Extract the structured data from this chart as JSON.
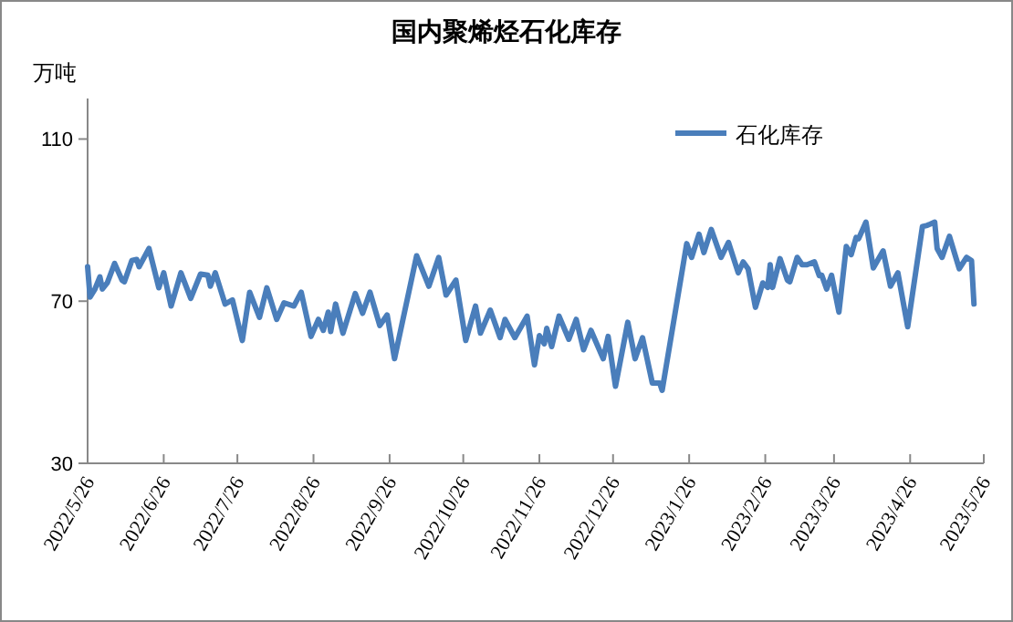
{
  "chart_data": {
    "type": "line",
    "title": "国内聚烯烃石化库存",
    "ylabel": "万吨",
    "x": [
      "2022-05-26",
      "2022-05-27",
      "2022-05-29",
      "2022-05-31",
      "2022-06-01",
      "2022-06-03",
      "2022-06-06",
      "2022-06-09",
      "2022-06-10",
      "2022-06-13",
      "2022-06-15",
      "2022-06-16",
      "2022-06-20",
      "2022-06-24",
      "2022-06-26",
      "2022-06-29",
      "2022-07-03",
      "2022-07-07",
      "2022-07-11",
      "2022-07-14",
      "2022-07-15",
      "2022-07-17",
      "2022-07-21",
      "2022-07-24",
      "2022-07-28",
      "2022-07-31",
      "2022-08-04",
      "2022-08-07",
      "2022-08-11",
      "2022-08-14",
      "2022-08-18",
      "2022-08-21",
      "2022-08-25",
      "2022-08-28",
      "2022-08-30",
      "2022-09-01",
      "2022-09-02",
      "2022-09-04",
      "2022-09-07",
      "2022-09-12",
      "2022-09-15",
      "2022-09-18",
      "2022-09-22",
      "2022-09-25",
      "2022-09-28",
      "2022-10-07",
      "2022-10-12",
      "2022-10-16",
      "2022-10-19",
      "2022-10-23",
      "2022-10-27",
      "2022-10-31",
      "2022-11-02",
      "2022-11-06",
      "2022-11-10",
      "2022-11-12",
      "2022-11-16",
      "2022-11-21",
      "2022-11-24",
      "2022-11-26",
      "2022-11-28",
      "2022-11-29",
      "2022-12-01",
      "2022-12-04",
      "2022-12-08",
      "2022-12-11",
      "2022-12-14",
      "2022-12-17",
      "2022-12-22",
      "2022-12-24",
      "2022-12-27",
      "2023-01-01",
      "2023-01-04",
      "2023-01-07",
      "2023-01-11",
      "2023-01-14",
      "2023-01-15",
      "2023-01-25",
      "2023-01-27",
      "2023-01-30",
      "2023-02-01",
      "2023-02-04",
      "2023-02-08",
      "2023-02-11",
      "2023-02-15",
      "2023-02-17",
      "2023-02-19",
      "2023-02-22",
      "2023-02-25",
      "2023-02-27",
      "2023-02-28",
      "2023-03-01",
      "2023-03-04",
      "2023-03-07",
      "2023-03-08",
      "2023-03-11",
      "2023-03-13",
      "2023-03-15",
      "2023-03-18",
      "2023-03-20",
      "2023-03-21",
      "2023-03-23",
      "2023-03-25",
      "2023-03-28",
      "2023-03-31",
      "2023-04-02",
      "2023-04-04",
      "2023-04-05",
      "2023-04-08",
      "2023-04-11",
      "2023-04-15",
      "2023-04-18",
      "2023-04-21",
      "2023-04-25",
      "2023-05-01",
      "2023-05-03",
      "2023-05-06",
      "2023-05-07",
      "2023-05-09",
      "2023-05-12",
      "2023-05-16",
      "2023-05-19",
      "2023-05-21",
      "2023-05-22"
    ],
    "series": [
      {
        "name": "石化库存",
        "color": "#4a7ebb",
        "values": [
          78.5,
          71.0,
          73.0,
          76.0,
          73.0,
          74.5,
          79.3,
          75.2,
          74.8,
          80.0,
          80.3,
          78.5,
          83.0,
          73.3,
          77.0,
          68.8,
          77.0,
          70.7,
          76.7,
          76.4,
          73.7,
          77.0,
          69.3,
          70.3,
          60.3,
          72.2,
          66.0,
          73.3,
          65.5,
          69.6,
          68.8,
          72.2,
          61.3,
          65.5,
          62.8,
          67.3,
          62.5,
          69.3,
          62.1,
          71.9,
          67.0,
          72.2,
          64.0,
          66.6,
          55.8,
          81.2,
          73.7,
          80.8,
          71.5,
          75.2,
          60.3,
          68.8,
          62.1,
          67.8,
          61.0,
          65.5,
          61.0,
          66.3,
          54.3,
          61.5,
          59.5,
          63.3,
          58.8,
          66.3,
          60.6,
          65.5,
          58.0,
          62.8,
          55.8,
          61.3,
          49.0,
          64.8,
          55.8,
          61.0,
          49.8,
          49.8,
          48.0,
          84.2,
          80.8,
          86.5,
          82.0,
          87.7,
          80.8,
          84.5,
          77.0,
          79.7,
          78.0,
          68.5,
          74.5,
          73.4,
          79.0,
          73.4,
          80.5,
          75.2,
          74.8,
          80.8,
          79.0,
          79.0,
          79.7,
          76.3,
          76.4,
          73.0,
          76.4,
          67.3,
          83.5,
          81.5,
          85.7,
          85.4,
          89.5,
          78.2,
          82.4,
          73.7,
          77.0,
          63.7,
          88.4,
          88.7,
          89.5,
          83.0,
          80.8,
          86.0,
          78.0,
          80.8,
          80.0,
          69.3
        ]
      }
    ],
    "xlim": [
      "2022-05-26",
      "2023-05-26"
    ],
    "xticks": [
      {
        "value": "2022-05-26",
        "label": "2022/5/26"
      },
      {
        "value": "2022-06-26",
        "label": "2022/6/26"
      },
      {
        "value": "2022-07-26",
        "label": "2022/7/26"
      },
      {
        "value": "2022-08-26",
        "label": "2022/8/26"
      },
      {
        "value": "2022-09-26",
        "label": "2022/9/26"
      },
      {
        "value": "2022-10-26",
        "label": "2022/10/26"
      },
      {
        "value": "2022-11-26",
        "label": "2022/11/26"
      },
      {
        "value": "2022-12-26",
        "label": "2022/12/26"
      },
      {
        "value": "2023-01-26",
        "label": "2023/1/26"
      },
      {
        "value": "2023-02-26",
        "label": "2023/2/26"
      },
      {
        "value": "2023-03-26",
        "label": "2023/3/26"
      },
      {
        "value": "2023-04-26",
        "label": "2023/4/26"
      },
      {
        "value": "2023-05-26",
        "label": "2023/5/26"
      }
    ],
    "ylim": [
      30,
      120
    ],
    "yticks": [
      30,
      70,
      110
    ],
    "legend": "top right"
  }
}
